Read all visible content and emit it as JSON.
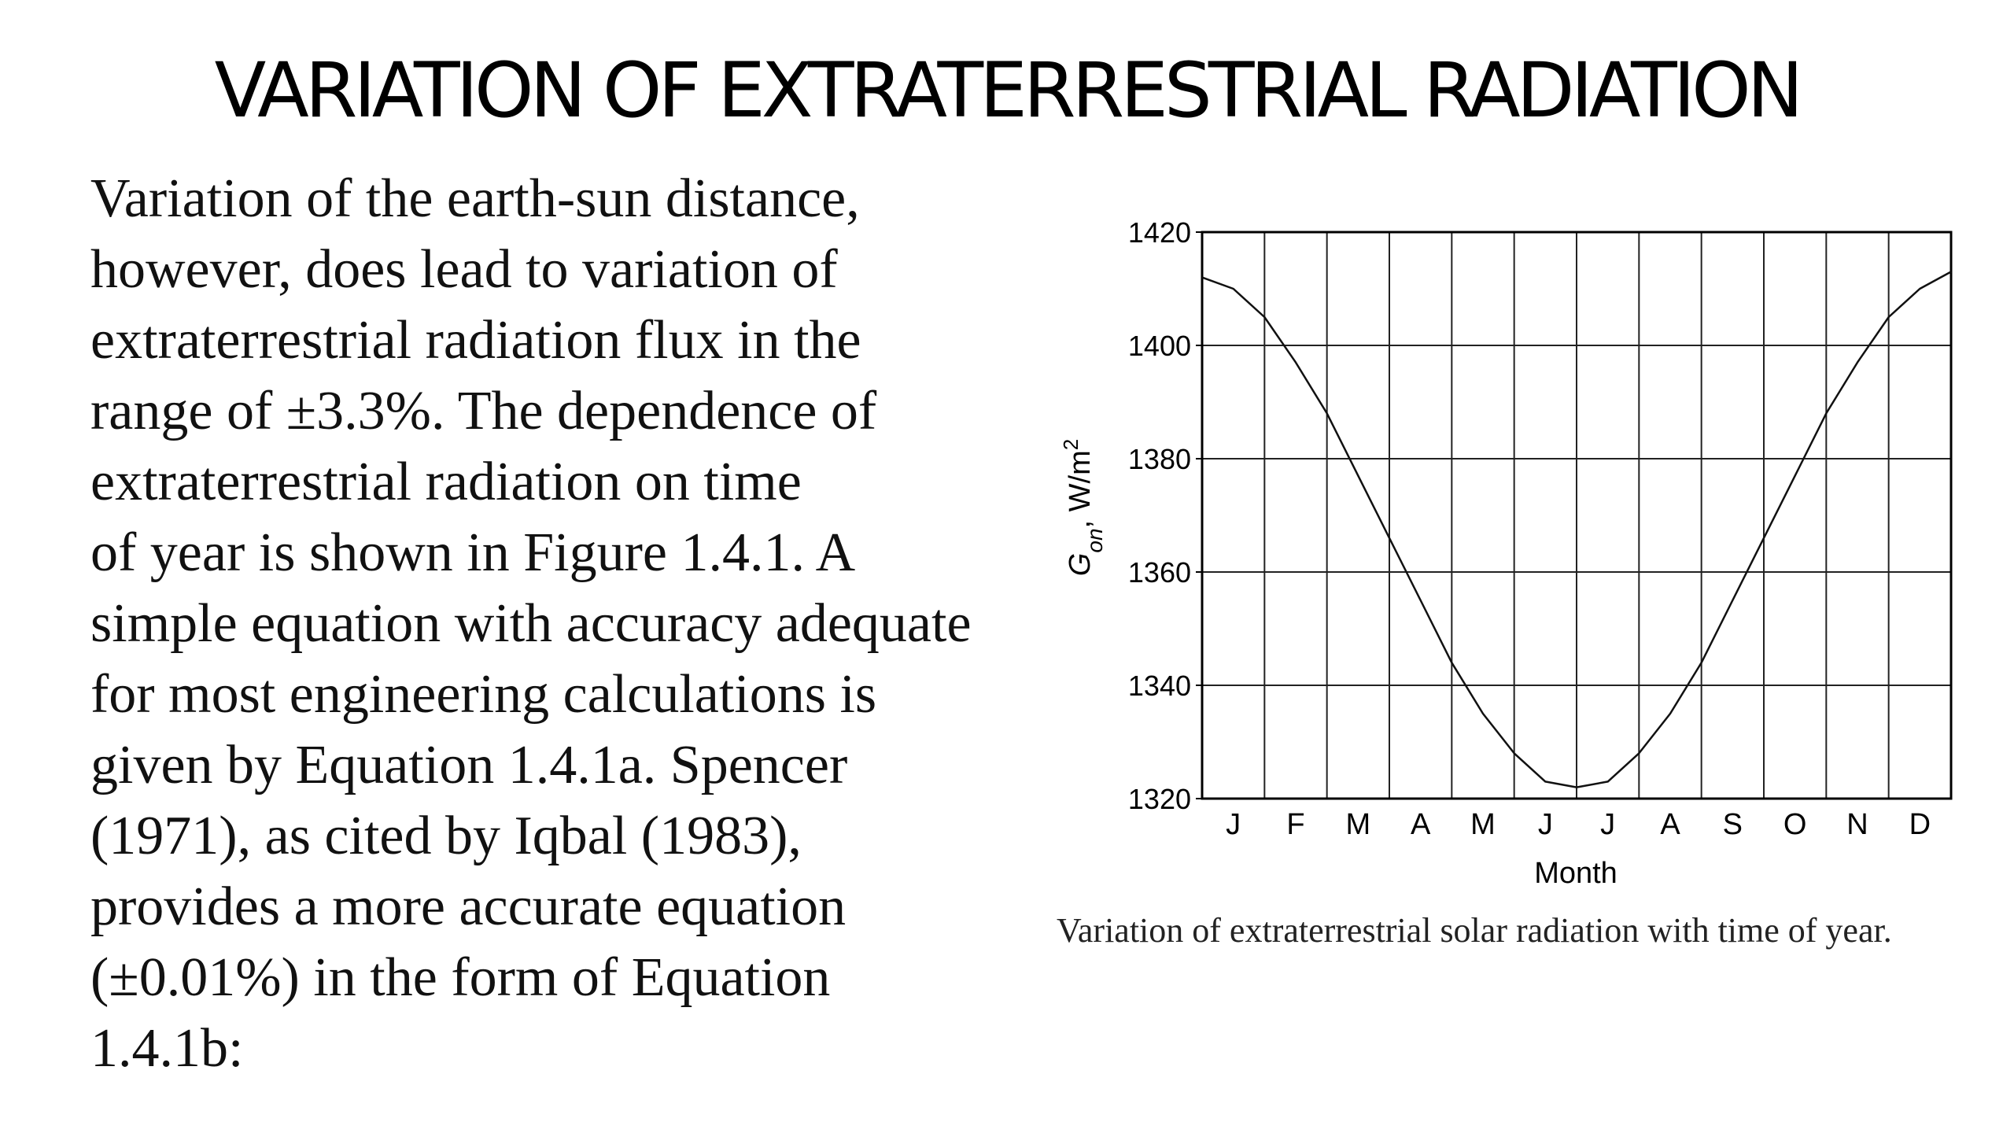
{
  "slide": {
    "title": "VARIATION OF EXTRATERRESTRIAL RADIATION",
    "body_lines": [
      "Variation of the earth-sun distance,",
      "however, does lead to variation of",
      "extraterrestrial radiation flux in the",
      "range of ±3.3%. The dependence of",
      "extraterrestrial radiation on time",
      "of year is shown in Figure 1.4.1. A",
      "simple equation with accuracy adequate",
      "for most engineering calculations is",
      "given by Equation 1.4.1a. Spencer",
      "(1971), as cited by Iqbal (1983),",
      "provides a more accurate equation",
      "(±0.01%) in the form of Equation",
      "1.4.1b:"
    ],
    "caption": "Variation of extraterrestrial solar radiation with time of year."
  },
  "chart_data": {
    "type": "line",
    "title": "",
    "xlabel": "Month",
    "ylabel": "G_on , W/m²",
    "ylabel_parts": {
      "symbol": "G",
      "subscript": "on",
      "units": ", W/m",
      "superscript": "2"
    },
    "categories": [
      "J",
      "F",
      "M",
      "A",
      "M",
      "J",
      "J",
      "A",
      "S",
      "O",
      "N",
      "D"
    ],
    "yticks": [
      1320,
      1340,
      1360,
      1380,
      1400,
      1420
    ],
    "ylim": [
      1320,
      1420
    ],
    "xlim": [
      0,
      12
    ],
    "grid": true,
    "legend": "none",
    "x": [
      0,
      0.5,
      1,
      1.5,
      2,
      2.5,
      3,
      3.5,
      4,
      4.5,
      5,
      5.5,
      6,
      6.5,
      7,
      7.5,
      8,
      8.5,
      9,
      9.5,
      10,
      10.5,
      11,
      11.5,
      12
    ],
    "series": [
      {
        "values": [
          1412,
          1410,
          1405,
          1397,
          1388,
          1377,
          1366,
          1355,
          1344,
          1335,
          1328,
          1323,
          1322,
          1323,
          1328,
          1335,
          1344,
          1355,
          1366,
          1377,
          1388,
          1397,
          1405,
          1410,
          1413
        ]
      }
    ],
    "colors": {
      "line": "#111111",
      "grid": "#222222",
      "axes": "#000000"
    }
  }
}
